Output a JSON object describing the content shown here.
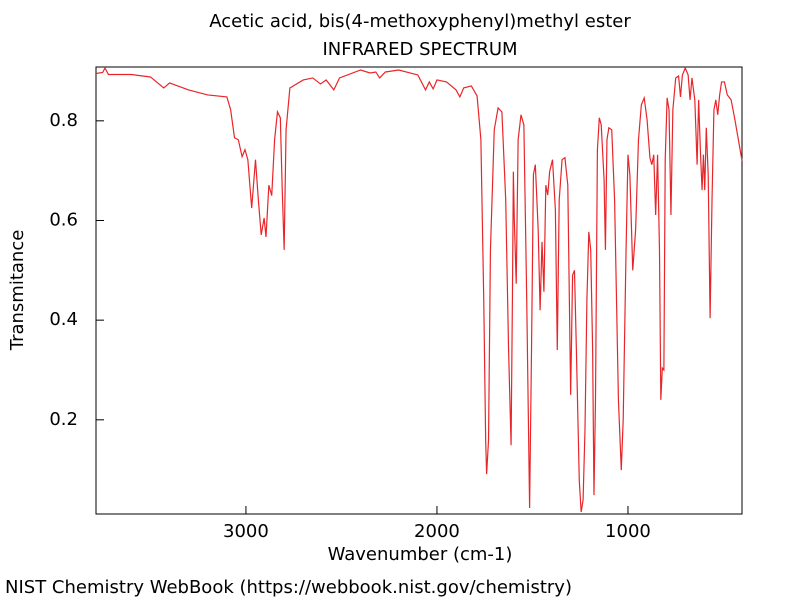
{
  "chart_data": {
    "type": "line",
    "title": "Acetic acid, bis(4-methoxyphenyl)methyl ester",
    "subtitle": "INFRARED SPECTRUM",
    "x_label": "Wavenumber (cm-1)",
    "y_label": "Transmitance",
    "xlim": [
      3785,
      403
    ],
    "ylim": [
      0.011,
      0.908
    ],
    "xticks": [
      3000,
      2000,
      1000
    ],
    "yticks": [
      0.2,
      0.4,
      0.6,
      0.8
    ],
    "x": [
      3785,
      3750,
      3738,
      3720,
      3600,
      3500,
      3430,
      3400,
      3300,
      3200,
      3100,
      3080,
      3060,
      3040,
      3020,
      3005,
      2990,
      2970,
      2950,
      2935,
      2920,
      2905,
      2895,
      2880,
      2865,
      2850,
      2835,
      2820,
      2810,
      2800,
      2790,
      2770,
      2700,
      2650,
      2610,
      2580,
      2540,
      2510,
      2400,
      2350,
      2320,
      2300,
      2270,
      2200,
      2100,
      2060,
      2040,
      2020,
      2000,
      1950,
      1900,
      1880,
      1860,
      1820,
      1790,
      1770,
      1755,
      1745,
      1740,
      1730,
      1720,
      1700,
      1680,
      1660,
      1640,
      1625,
      1612,
      1605,
      1600,
      1595,
      1585,
      1575,
      1560,
      1545,
      1530,
      1515,
      1505,
      1495,
      1485,
      1470,
      1460,
      1450,
      1440,
      1430,
      1420,
      1410,
      1395,
      1380,
      1370,
      1360,
      1345,
      1330,
      1315,
      1300,
      1290,
      1280,
      1270,
      1255,
      1245,
      1235,
      1225,
      1215,
      1205,
      1195,
      1185,
      1178,
      1170,
      1160,
      1150,
      1140,
      1125,
      1118,
      1110,
      1100,
      1085,
      1070,
      1050,
      1035,
      1025,
      1010,
      1000,
      990,
      975,
      960,
      945,
      930,
      915,
      900,
      885,
      875,
      865,
      855,
      845,
      835,
      828,
      820,
      812,
      805,
      795,
      785,
      775,
      765,
      750,
      735,
      725,
      715,
      700,
      685,
      675,
      665,
      650,
      638,
      630,
      620,
      612,
      605,
      598,
      590,
      580,
      570,
      560,
      550,
      540,
      530,
      520,
      510,
      495,
      480,
      460,
      440,
      403
    ],
    "series": [
      {
        "color": "#e8262a",
        "values": [
          0.895,
          0.897,
          0.906,
          0.893,
          0.893,
          0.888,
          0.866,
          0.876,
          0.862,
          0.852,
          0.848,
          0.822,
          0.766,
          0.762,
          0.728,
          0.742,
          0.722,
          0.625,
          0.722,
          0.641,
          0.571,
          0.605,
          0.567,
          0.671,
          0.65,
          0.762,
          0.818,
          0.806,
          0.661,
          0.541,
          0.782,
          0.866,
          0.882,
          0.886,
          0.874,
          0.882,
          0.862,
          0.886,
          0.902,
          0.896,
          0.898,
          0.886,
          0.898,
          0.902,
          0.892,
          0.862,
          0.878,
          0.864,
          0.882,
          0.878,
          0.862,
          0.848,
          0.866,
          0.87,
          0.85,
          0.762,
          0.441,
          0.159,
          0.091,
          0.159,
          0.541,
          0.782,
          0.826,
          0.818,
          0.641,
          0.34,
          0.149,
          0.441,
          0.698,
          0.601,
          0.473,
          0.762,
          0.812,
          0.792,
          0.441,
          0.023,
          0.34,
          0.692,
          0.712,
          0.581,
          0.42,
          0.557,
          0.457,
          0.671,
          0.651,
          0.698,
          0.722,
          0.621,
          0.34,
          0.641,
          0.722,
          0.726,
          0.671,
          0.25,
          0.49,
          0.5,
          0.34,
          0.079,
          0.015,
          0.039,
          0.18,
          0.441,
          0.577,
          0.541,
          0.34,
          0.049,
          0.24,
          0.742,
          0.806,
          0.792,
          0.681,
          0.541,
          0.762,
          0.786,
          0.782,
          0.641,
          0.24,
          0.099,
          0.2,
          0.541,
          0.732,
          0.692,
          0.5,
          0.581,
          0.762,
          0.832,
          0.846,
          0.802,
          0.726,
          0.712,
          0.732,
          0.611,
          0.732,
          0.541,
          0.24,
          0.304,
          0.3,
          0.722,
          0.846,
          0.822,
          0.611,
          0.822,
          0.886,
          0.89,
          0.848,
          0.892,
          0.906,
          0.892,
          0.842,
          0.886,
          0.842,
          0.712,
          0.842,
          0.732,
          0.661,
          0.732,
          0.661,
          0.786,
          0.692,
          0.404,
          0.641,
          0.822,
          0.842,
          0.812,
          0.852,
          0.878,
          0.878,
          0.852,
          0.842,
          0.802,
          0.72
        ]
      }
    ]
  },
  "footer": "NIST Chemistry WebBook (https://webbook.nist.gov/chemistry)"
}
